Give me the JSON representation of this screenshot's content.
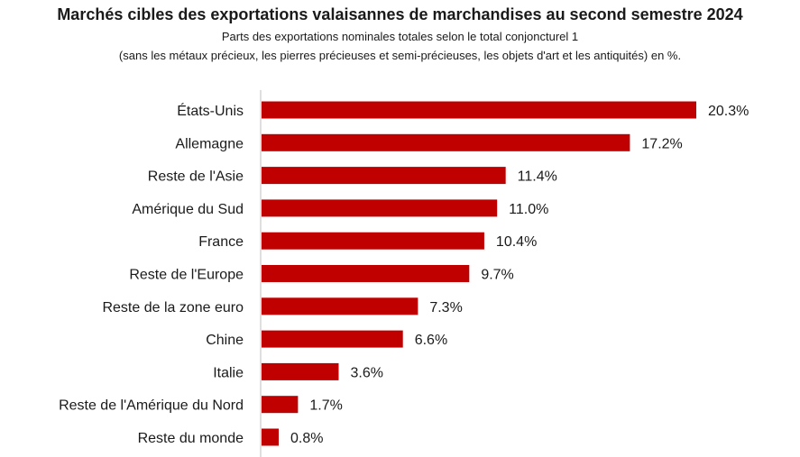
{
  "chart_data": {
    "type": "bar",
    "orientation": "horizontal",
    "title": "Marchés cibles des exportations valaisannes de marchandises au second semestre 2024",
    "subtitle": [
      "Parts des exportations nominales totales selon le total conjoncturel 1",
      "(sans les métaux précieux, les pierres précieuses et semi-précieuses, les objets d'art et les antiquités) en %."
    ],
    "categories": [
      "États-Unis",
      "Allemagne",
      "Reste de l'Asie",
      "Amérique du Sud",
      "France",
      "Reste de l'Europe",
      "Reste de la zone euro",
      "Chine",
      "Italie",
      "Reste de l'Amérique du Nord",
      "Reste du monde"
    ],
    "values": [
      20.3,
      17.2,
      11.4,
      11.0,
      10.4,
      9.7,
      7.3,
      6.6,
      3.6,
      1.7,
      0.8
    ],
    "value_labels": [
      "20.3%",
      "17.2%",
      "11.4%",
      "11.0%",
      "10.4%",
      "9.7%",
      "7.3%",
      "6.6%",
      "3.6%",
      "1.7%",
      "0.8%"
    ],
    "xlim": [
      0,
      21
    ],
    "grid": false,
    "bar_color": "#c00000",
    "axis_color": "#bfbfbf"
  }
}
